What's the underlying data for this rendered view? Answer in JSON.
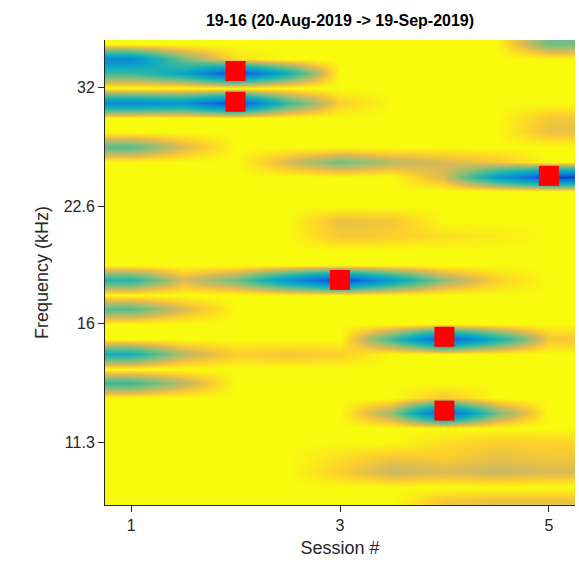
{
  "chart_data": {
    "type": "heatmap",
    "title": "19-16 (20-Aug-2019 -> 19-Sep-2019)",
    "x_label": "Session #",
    "y_label": "Frequency (kHz)",
    "log": "y",
    "grid": false,
    "xlim": [
      0.75,
      5.25
    ],
    "xticks": [
      1,
      3,
      5
    ],
    "ylim": [
      9.4,
      36.8
    ],
    "yticks": [
      11.3,
      16,
      22.6,
      32
    ],
    "zlim": [
      0,
      1
    ],
    "x": [
      1,
      1.5,
      2,
      2.5,
      3,
      3.5,
      4,
      4.5,
      5
    ],
    "y": [
      9.5,
      9.92,
      10.36,
      10.82,
      11.3,
      11.8,
      12.32,
      12.87,
      13.44,
      14.03,
      14.65,
      15.3,
      15.98,
      16.69,
      17.43,
      18.2,
      19.0,
      19.84,
      20.72,
      21.64,
      22.6,
      23.6,
      24.64,
      25.73,
      26.87,
      28.06,
      29.3,
      30.6,
      31.96,
      33.37,
      34.85,
      36.39
    ],
    "z": [
      [
        1,
        1,
        1,
        1,
        1,
        1,
        0.9,
        0.88,
        0.88
      ],
      [
        1,
        1,
        1,
        1,
        1,
        1,
        1,
        1,
        1
      ],
      [
        1,
        1,
        1,
        1,
        0.92,
        0.82,
        0.85,
        0.82,
        0.85
      ],
      [
        1,
        1,
        1,
        1,
        0.95,
        0.9,
        0.92,
        0.88,
        0.9
      ],
      [
        1,
        1,
        1,
        1,
        1,
        1,
        0.95,
        0.92,
        0.93
      ],
      [
        1,
        1,
        1,
        1,
        1,
        1,
        1,
        1,
        1
      ],
      [
        1,
        1,
        1,
        1,
        1,
        0.75,
        0.1,
        0.7,
        1
      ],
      [
        1,
        1,
        1,
        1,
        1,
        1,
        0.9,
        1,
        1
      ],
      [
        0.6,
        0.8,
        1,
        1,
        1,
        1,
        1,
        1,
        1
      ],
      [
        1,
        1,
        1,
        1,
        1,
        1,
        1,
        1,
        1
      ],
      [
        0.5,
        0.8,
        0.92,
        0.9,
        0.92,
        1,
        1,
        1,
        1
      ],
      [
        1,
        1,
        1,
        1,
        1,
        0.6,
        0.1,
        0.5,
        0.9
      ],
      [
        1,
        1,
        1,
        1,
        1,
        1,
        1,
        1,
        1
      ],
      [
        0.65,
        0.85,
        1,
        1,
        1,
        1,
        1,
        1,
        1
      ],
      [
        1,
        1,
        1,
        1,
        1,
        1,
        1,
        1,
        1
      ],
      [
        0.55,
        0.85,
        0.7,
        0.35,
        0.05,
        0.4,
        0.75,
        0.92,
        1
      ],
      [
        1,
        1,
        1,
        1,
        1,
        1,
        1,
        1,
        1
      ],
      [
        1,
        1,
        1,
        1,
        1,
        1,
        1,
        1,
        1
      ],
      [
        1,
        1,
        1,
        1,
        0.9,
        0.92,
        0.95,
        0.97,
        1
      ],
      [
        1,
        1,
        1,
        1,
        0.88,
        0.9,
        1,
        1,
        1
      ],
      [
        1,
        1,
        1,
        1,
        1,
        1,
        1,
        1,
        1
      ],
      [
        1,
        1,
        1,
        1,
        1,
        1,
        1,
        1,
        1
      ],
      [
        1,
        1,
        1,
        1,
        1,
        1,
        0.85,
        0.4,
        0.05
      ],
      [
        1,
        1,
        1,
        0.85,
        0.7,
        0.8,
        0.85,
        0.9,
        1
      ],
      [
        0.65,
        0.85,
        1,
        1,
        1,
        1,
        1,
        1,
        1
      ],
      [
        1,
        1,
        1,
        1,
        1,
        1,
        1,
        1,
        0.88
      ],
      [
        1,
        1,
        1,
        1,
        1,
        1,
        1,
        1,
        0.9
      ],
      [
        0.3,
        0.35,
        0.05,
        0.6,
        0.92,
        1,
        1,
        1,
        1
      ],
      [
        1,
        1,
        1,
        1,
        1,
        1,
        1,
        1,
        1
      ],
      [
        0.6,
        0.45,
        0.05,
        0.5,
        1,
        1,
        1,
        1,
        1
      ],
      [
        0.3,
        0.7,
        0.95,
        1,
        1,
        1,
        1,
        1,
        1
      ],
      [
        1,
        1,
        1,
        1,
        1,
        1,
        1,
        1,
        0.7
      ]
    ],
    "series": [
      {
        "type": "scatter",
        "marker": "square",
        "color": "#ff0000",
        "x": [
          2,
          2,
          3,
          4,
          4,
          5
        ],
        "values": [
          33.6,
          30.7,
          18.2,
          15.4,
          12.4,
          24.7
        ]
      }
    ]
  }
}
